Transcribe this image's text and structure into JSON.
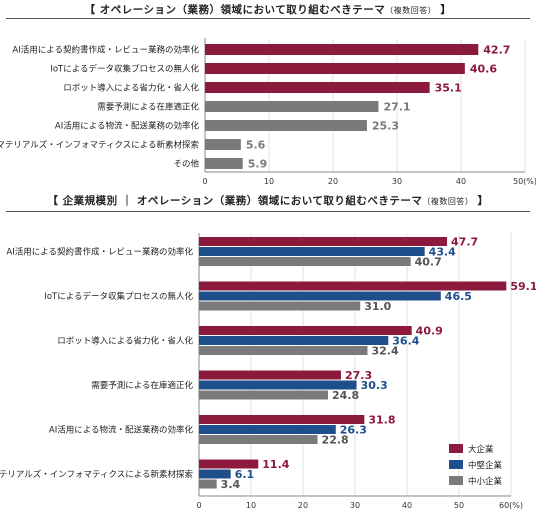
{
  "colors": {
    "maroon": "#8c1a3c",
    "gray": "#7a7a7a",
    "navy": "#1f4e8c",
    "axis": "#888888",
    "grid": "#cccccc"
  },
  "chart1_title": {
    "open": "【",
    "main": "オペレーション（業務）領域において取り組むべきテーマ",
    "sub": "（複数回答）",
    "close": "】"
  },
  "chart2_title": {
    "open": "【",
    "main": "企業規模別 ｜ オペレーション（業務）領域において取り組むべきテーマ",
    "sub": "（複数回答）",
    "close": "】"
  },
  "chart_data": [
    {
      "type": "bar",
      "orientation": "horizontal",
      "categories": [
        "AI活用による契約書作成・レビュー業務の効率化",
        "IoTによるデータ収集プロセスの無人化",
        "ロボット導入による省力化・省人化",
        "需要予測による在庫適正化",
        "AI活用による物流・配送業務の効率化",
        "マテリアルズ・インフォマティクスによる新素材探索",
        "その他"
      ],
      "values": [
        42.7,
        40.6,
        35.1,
        27.1,
        25.3,
        5.6,
        5.9
      ],
      "value_labels": [
        "42.7",
        "40.6",
        "35.1",
        "27.1",
        "25.3",
        "5.6",
        "5.9"
      ],
      "highlight_top": 3,
      "xlim": [
        0,
        50
      ],
      "xticks": [
        "0",
        "10",
        "20",
        "30",
        "40",
        "50(%)"
      ]
    },
    {
      "type": "bar",
      "orientation": "horizontal",
      "categories": [
        "AI活用による契約書作成・レビュー業務の効率化",
        "IoTによるデータ収集プロセスの無人化",
        "ロボット導入による省力化・省人化",
        "需要予測による在庫適正化",
        "AI活用による物流・配送業務の効率化",
        "マテリアルズ・インフォマティクスによる新素材探索"
      ],
      "series": [
        {
          "name": "大企業",
          "values": [
            47.7,
            59.1,
            40.9,
            27.3,
            31.8,
            11.4
          ],
          "labels": [
            "47.7",
            "59.1",
            "40.9",
            "27.3",
            "31.8",
            "11.4"
          ]
        },
        {
          "name": "中堅企業",
          "values": [
            43.4,
            46.5,
            36.4,
            30.3,
            26.3,
            6.1
          ],
          "labels": [
            "43.4",
            "46.5",
            "36.4",
            "30.3",
            "26.3",
            "6.1"
          ]
        },
        {
          "name": "中小企業",
          "values": [
            40.7,
            31.0,
            32.4,
            24.8,
            22.8,
            3.4
          ],
          "labels": [
            "40.7",
            "31.0",
            "32.4",
            "24.8",
            "22.8",
            "3.4"
          ]
        }
      ],
      "xlim": [
        0,
        60
      ],
      "xticks": [
        "0",
        "10",
        "20",
        "30",
        "40",
        "50",
        "60(%)"
      ],
      "legend_position": "bottom-right"
    }
  ]
}
